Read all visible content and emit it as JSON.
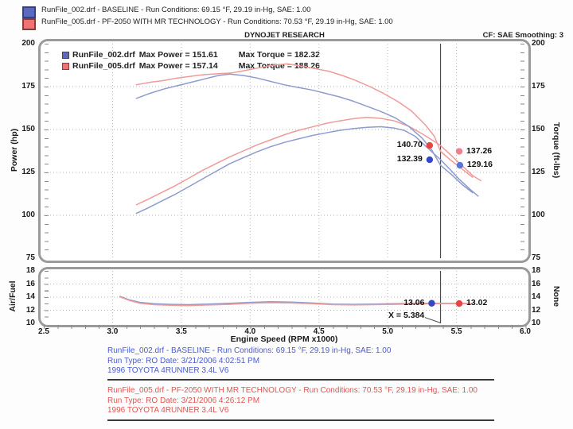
{
  "top_legend": {
    "rows": [
      {
        "text": "RunFile_002.drf - BASELINE  -  Run Conditions: 69.15 °F, 29.19 in-Hg, SAE: 1.00",
        "swatch": "#5a6abf"
      },
      {
        "text": "RunFile_005.drf - PF-2050 WITH MR TECHNOLOGY  -  Run Conditions: 70.53 °F, 29.19 in-Hg, SAE: 1.00",
        "swatch": "#f07272"
      }
    ]
  },
  "header": {
    "title": "DYNOJET RESEARCH",
    "cf_smoothing": "CF: SAE  Smoothing: 3"
  },
  "chart_data": [
    {
      "type": "line",
      "title": "DYNOJET RESEARCH",
      "xlabel": "Engine Speed (RPM x1000)",
      "ylabel_left": "Power (hp)",
      "ylabel_right": "Torque (ft-lbs)",
      "xlim": [
        2.5,
        6.0
      ],
      "ylim": [
        75,
        200
      ],
      "xticks": [
        2.5,
        3.0,
        3.5,
        4.0,
        4.5,
        5.0,
        5.5,
        6.0
      ],
      "yticks": [
        75,
        100,
        125,
        150,
        175,
        200
      ],
      "grid": "dotted",
      "cursor_x": 5.384,
      "legend": {
        "position": "top-left",
        "rows": [
          {
            "name": "RunFile_002.drf",
            "max_power": 151.61,
            "max_torque": 182.32,
            "max_power_label": "Max Power = 151.61",
            "max_torque_label": "Max Torque = 182.32",
            "color": "#5a6abf"
          },
          {
            "name": "RunFile_005.drf",
            "max_power": 157.14,
            "max_torque": 188.26,
            "max_power_label": "Max Power = 157.14",
            "max_torque_label": "Max Torque = 188.26",
            "color": "#f07272"
          }
        ]
      },
      "series": [
        {
          "name": "baseline-power",
          "color": "#8d9bce",
          "points": [
            [
              3.17,
              101
            ],
            [
              3.25,
              104
            ],
            [
              3.35,
              108
            ],
            [
              3.45,
              112
            ],
            [
              3.55,
              116.5
            ],
            [
              3.65,
              121
            ],
            [
              3.75,
              125.5
            ],
            [
              3.85,
              130
            ],
            [
              3.95,
              133.5
            ],
            [
              4.05,
              137
            ],
            [
              4.15,
              140
            ],
            [
              4.25,
              142.5
            ],
            [
              4.35,
              144.5
            ],
            [
              4.45,
              146.5
            ],
            [
              4.55,
              148
            ],
            [
              4.65,
              149.5
            ],
            [
              4.75,
              150.5
            ],
            [
              4.85,
              151.3
            ],
            [
              4.95,
              151.61
            ],
            [
              5.05,
              150.8
            ],
            [
              5.12,
              149.5
            ],
            [
              5.2,
              146
            ],
            [
              5.28,
              140
            ],
            [
              5.384,
              132.39
            ],
            [
              5.45,
              127
            ],
            [
              5.52,
              121
            ],
            [
              5.6,
              115
            ],
            [
              5.66,
              111
            ]
          ]
        },
        {
          "name": "pf2050-power",
          "color": "#f09a9a",
          "points": [
            [
              3.17,
              106
            ],
            [
              3.25,
              109
            ],
            [
              3.35,
              113
            ],
            [
              3.45,
              117
            ],
            [
              3.55,
              121.5
            ],
            [
              3.65,
              126
            ],
            [
              3.75,
              130
            ],
            [
              3.85,
              134
            ],
            [
              3.95,
              137.5
            ],
            [
              4.05,
              141
            ],
            [
              4.15,
              144
            ],
            [
              4.25,
              147
            ],
            [
              4.35,
              149.5
            ],
            [
              4.45,
              151.5
            ],
            [
              4.55,
              153.5
            ],
            [
              4.65,
              155
            ],
            [
              4.75,
              156.3
            ],
            [
              4.85,
              157.14
            ],
            [
              4.95,
              156.5
            ],
            [
              5.05,
              155
            ],
            [
              5.15,
              152
            ],
            [
              5.25,
              147.5
            ],
            [
              5.32,
              144
            ],
            [
              5.384,
              140.7
            ],
            [
              5.46,
              135
            ],
            [
              5.54,
              129
            ],
            [
              5.62,
              123
            ],
            [
              5.68,
              120
            ]
          ]
        },
        {
          "name": "baseline-torque",
          "color": "#8d9bce",
          "points": [
            [
              3.17,
              168
            ],
            [
              3.27,
              171
            ],
            [
              3.37,
              173.5
            ],
            [
              3.47,
              175.5
            ],
            [
              3.57,
              177.5
            ],
            [
              3.67,
              179.5
            ],
            [
              3.77,
              181.5
            ],
            [
              3.85,
              182.32
            ],
            [
              3.95,
              181.5
            ],
            [
              4.05,
              180
            ],
            [
              4.15,
              178
            ],
            [
              4.25,
              176
            ],
            [
              4.35,
              174.5
            ],
            [
              4.45,
              173
            ],
            [
              4.55,
              171
            ],
            [
              4.65,
              169
            ],
            [
              4.75,
              166.5
            ],
            [
              4.85,
              163.5
            ],
            [
              4.95,
              160.5
            ],
            [
              5.05,
              157
            ],
            [
              5.15,
              152
            ],
            [
              5.25,
              145
            ],
            [
              5.32,
              138
            ],
            [
              5.384,
              129.16
            ],
            [
              5.46,
              124
            ],
            [
              5.54,
              118
            ],
            [
              5.62,
              113
            ]
          ]
        },
        {
          "name": "pf2050-torque",
          "color": "#f09a9a",
          "points": [
            [
              3.17,
              176
            ],
            [
              3.27,
              177.5
            ],
            [
              3.37,
              178.5
            ],
            [
              3.47,
              180
            ],
            [
              3.57,
              181
            ],
            [
              3.67,
              182
            ],
            [
              3.77,
              182.5
            ],
            [
              3.87,
              183
            ],
            [
              3.97,
              184.5
            ],
            [
              4.07,
              186
            ],
            [
              4.17,
              187.5
            ],
            [
              4.27,
              188.26
            ],
            [
              4.37,
              187
            ],
            [
              4.47,
              185.5
            ],
            [
              4.57,
              184
            ],
            [
              4.67,
              181.5
            ],
            [
              4.77,
              178.5
            ],
            [
              4.87,
              175
            ],
            [
              4.97,
              171
            ],
            [
              5.07,
              166.5
            ],
            [
              5.17,
              161
            ],
            [
              5.27,
              153
            ],
            [
              5.34,
              146
            ],
            [
              5.384,
              137.26
            ],
            [
              5.46,
              132
            ],
            [
              5.54,
              127
            ],
            [
              5.62,
              122
            ]
          ]
        }
      ],
      "markers": [
        {
          "label": "140.70",
          "x": 5.305,
          "y": 140.7,
          "dot": "#e84343",
          "side": "left"
        },
        {
          "label": "137.26",
          "x": 5.52,
          "y": 137.26,
          "dot": "#f0808f",
          "side": "right"
        },
        {
          "label": "132.39",
          "x": 5.305,
          "y": 132.39,
          "dot": "#3347c8",
          "side": "left"
        },
        {
          "label": "129.16",
          "x": 5.525,
          "y": 129.16,
          "dot": "#5a74d8",
          "side": "right"
        }
      ]
    },
    {
      "type": "line",
      "title": "",
      "xlabel": "Engine Speed (RPM x1000)",
      "ylabel_left": "Air/Fuel",
      "ylabel_right": "None",
      "xlim": [
        2.5,
        6.0
      ],
      "ylim": [
        10,
        18
      ],
      "xticks": [
        2.5,
        3.0,
        3.5,
        4.0,
        4.5,
        5.0,
        5.5,
        6.0
      ],
      "yticks": [
        10,
        12,
        14,
        16,
        18
      ],
      "grid": "dotted",
      "cursor_x": 5.384,
      "cursor_label": "X = 5.384",
      "series": [
        {
          "name": "baseline-airfuel",
          "color": "#8d9bce",
          "points": [
            [
              3.05,
              14.15
            ],
            [
              3.12,
              13.6
            ],
            [
              3.2,
              13.2
            ],
            [
              3.3,
              13.0
            ],
            [
              3.42,
              12.9
            ],
            [
              3.55,
              12.85
            ],
            [
              3.7,
              12.95
            ],
            [
              3.85,
              13.05
            ],
            [
              4.0,
              13.2
            ],
            [
              4.15,
              13.3
            ],
            [
              4.3,
              13.25
            ],
            [
              4.45,
              13.1
            ],
            [
              4.6,
              12.95
            ],
            [
              4.75,
              12.9
            ],
            [
              4.9,
              12.95
            ],
            [
              5.05,
              13.0
            ],
            [
              5.2,
              13.05
            ],
            [
              5.384,
              13.06
            ],
            [
              5.5,
              13.05
            ],
            [
              5.6,
              13.05
            ]
          ]
        },
        {
          "name": "pf2050-airfuel",
          "color": "#f09a9a",
          "points": [
            [
              3.05,
              14.05
            ],
            [
              3.12,
              13.5
            ],
            [
              3.2,
              13.05
            ],
            [
              3.3,
              12.85
            ],
            [
              3.42,
              12.75
            ],
            [
              3.55,
              12.7
            ],
            [
              3.7,
              12.8
            ],
            [
              3.85,
              12.9
            ],
            [
              4.0,
              13.05
            ],
            [
              4.15,
              13.15
            ],
            [
              4.3,
              13.1
            ],
            [
              4.45,
              13.0
            ],
            [
              4.6,
              12.85
            ],
            [
              4.75,
              12.8
            ],
            [
              4.9,
              12.85
            ],
            [
              5.05,
              12.9
            ],
            [
              5.2,
              12.95
            ],
            [
              5.384,
              13.02
            ],
            [
              5.5,
              13.02
            ],
            [
              5.62,
              13.0
            ]
          ]
        }
      ],
      "markers": [
        {
          "label": "13.06",
          "x": 5.32,
          "y": 13.06,
          "dot": "#3347c8",
          "side": "left"
        },
        {
          "label": "13.02",
          "x": 5.52,
          "y": 13.02,
          "dot": "#e84343",
          "side": "right"
        }
      ],
      "annotation_lines": [
        {
          "x1": 5.27,
          "y1": 10.9,
          "x2": 5.384,
          "y2": 10.08
        }
      ]
    }
  ],
  "footer": {
    "runs": [
      {
        "color": "#4a5bd0",
        "line1": "RunFile_002.drf - BASELINE  -  Run Conditions: 69.15 °F, 29.19 in-Hg, SAE: 1.00",
        "line2": "Run Type: RO  Date: 3/21/2006 4:02:51 PM",
        "line3": "1996 TOYOTA 4RUNNER 3.4L V6"
      },
      {
        "color": "#e05555",
        "line1": "RunFile_005.drf - PF-2050 WITH MR TECHNOLOGY  -  Run Conditions: 70.53 °F, 29.19 in-Hg, SAE: 1.00",
        "line2": "Run Type: RO  Date: 3/21/2006 4:26:12 PM",
        "line3": "1996 TOYOTA 4RUNNER 3.4L V6"
      }
    ]
  }
}
